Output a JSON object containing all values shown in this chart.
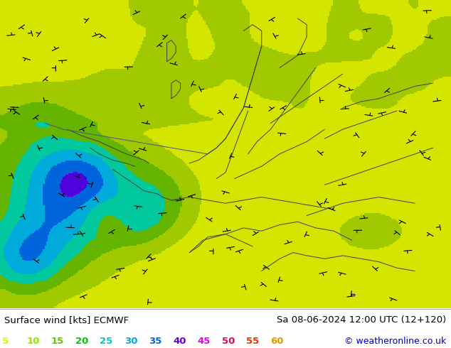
{
  "title_left": "Surface wind [kts] ECMWF",
  "title_right": "Sa 08-06-2024 12:00 UTC (12+120)",
  "copyright": "© weatheronline.co.uk",
  "legend_values": [
    5,
    10,
    15,
    20,
    25,
    30,
    35,
    40,
    45,
    50,
    55,
    60
  ],
  "legend_colors": [
    "#c8ff00",
    "#96e600",
    "#64c800",
    "#00c800",
    "#00c8c8",
    "#00aae6",
    "#0064e6",
    "#6400e6",
    "#e600e6",
    "#e60064",
    "#e63200",
    "#e69600"
  ],
  "colormap_levels": [
    0,
    5,
    10,
    15,
    20,
    25,
    30,
    35,
    40,
    45,
    50,
    55,
    60,
    100
  ],
  "colormap_colors": [
    "#ffff50",
    "#ffff00",
    "#d4e600",
    "#a0c800",
    "#64b400",
    "#00c8a0",
    "#00aadc",
    "#0064dc",
    "#5000dc",
    "#dc00dc",
    "#dc0050",
    "#dc3200",
    "#dc8c00"
  ],
  "bg_color": "#ffffff",
  "bottom_bar_height": 0.115,
  "figsize": [
    6.34,
    4.9
  ],
  "dpi": 100,
  "seed": 0
}
